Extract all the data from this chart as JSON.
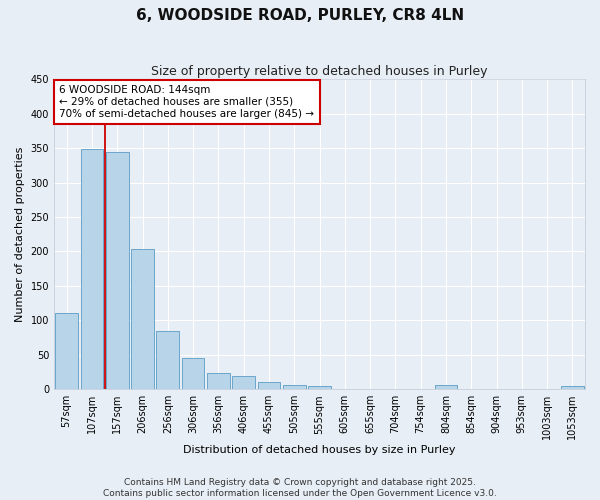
{
  "title": "6, WOODSIDE ROAD, PURLEY, CR8 4LN",
  "subtitle": "Size of property relative to detached houses in Purley",
  "xlabel": "Distribution of detached houses by size in Purley",
  "ylabel": "Number of detached properties",
  "categories": [
    "57sqm",
    "107sqm",
    "157sqm",
    "206sqm",
    "256sqm",
    "306sqm",
    "356sqm",
    "406sqm",
    "455sqm",
    "505sqm",
    "555sqm",
    "605sqm",
    "655sqm",
    "704sqm",
    "754sqm",
    "804sqm",
    "854sqm",
    "904sqm",
    "953sqm",
    "1003sqm",
    "1053sqm"
  ],
  "values": [
    110,
    348,
    344,
    204,
    85,
    45,
    24,
    19,
    10,
    6,
    5,
    0,
    0,
    0,
    0,
    6,
    0,
    0,
    0,
    0,
    5
  ],
  "bar_color": "#b8d4e8",
  "bar_edge_color": "#5a9cc5",
  "redline_index": 2,
  "annotation_title": "6 WOODSIDE ROAD: 144sqm",
  "annotation_line1": "← 29% of detached houses are smaller (355)",
  "annotation_line2": "70% of semi-detached houses are larger (845) →",
  "annotation_box_color": "#ffffff",
  "annotation_box_edge": "#cc0000",
  "redline_color": "#cc0000",
  "footer1": "Contains HM Land Registry data © Crown copyright and database right 2025.",
  "footer2": "Contains public sector information licensed under the Open Government Licence v3.0.",
  "ylim": [
    0,
    450
  ],
  "yticks": [
    0,
    50,
    100,
    150,
    200,
    250,
    300,
    350,
    400,
    450
  ],
  "bg_color": "#e8eef5",
  "grid_color": "#ffffff",
  "title_fontsize": 11,
  "subtitle_fontsize": 9,
  "axis_label_fontsize": 8,
  "tick_fontsize": 7,
  "annotation_fontsize": 7.5,
  "footer_fontsize": 6.5
}
